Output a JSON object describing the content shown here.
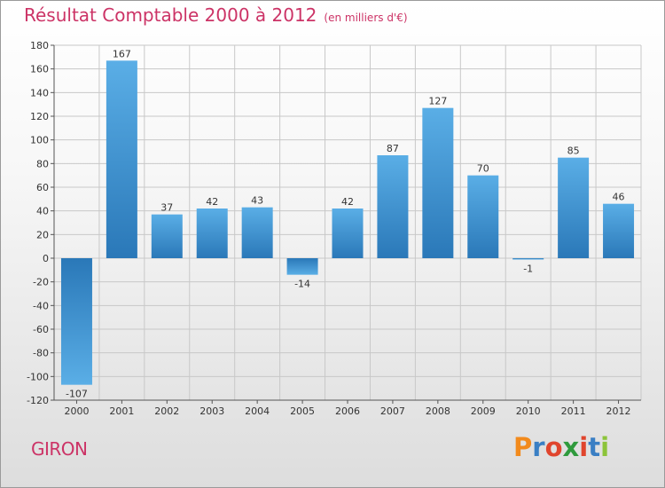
{
  "header": {
    "title": "Résultat Comptable 2000 à 2012",
    "subtitle": "(en milliers d'€)"
  },
  "commune": "GIRON",
  "logo": {
    "letters": [
      "P",
      "r",
      "o",
      "x",
      "i",
      "t",
      "i"
    ],
    "colors": [
      "#f28a1c",
      "#3a7fc4",
      "#e0452d",
      "#2f9a3d",
      "#e0452d",
      "#3a7fc4",
      "#8cc43a"
    ]
  },
  "colors": {
    "title": "#cc3366",
    "bar_light": "#5aaee6",
    "bar_dark": "#2a78b8",
    "grid": "#c8c8c8"
  },
  "chart_data": {
    "type": "bar",
    "title": "Résultat Comptable 2000 à 2012",
    "subtitle": "(en milliers d'€)",
    "categories": [
      "2000",
      "2001",
      "2002",
      "2003",
      "2004",
      "2005",
      "2006",
      "2007",
      "2008",
      "2009",
      "2010",
      "2011",
      "2012"
    ],
    "values": [
      -107,
      167,
      37,
      42,
      43,
      -14,
      42,
      87,
      127,
      70,
      -1,
      85,
      46
    ],
    "value_labels": [
      "-107",
      "167",
      "37",
      "42",
      "43",
      "-14",
      "42",
      "87",
      "127",
      "70",
      "-1",
      "85",
      "46"
    ],
    "ylim": [
      -120,
      180
    ],
    "yticks": [
      180,
      160,
      140,
      120,
      100,
      80,
      60,
      40,
      20,
      0,
      -20,
      -40,
      -60,
      -80,
      -100,
      -120
    ],
    "grid": true,
    "xlabel": "",
    "ylabel": ""
  }
}
